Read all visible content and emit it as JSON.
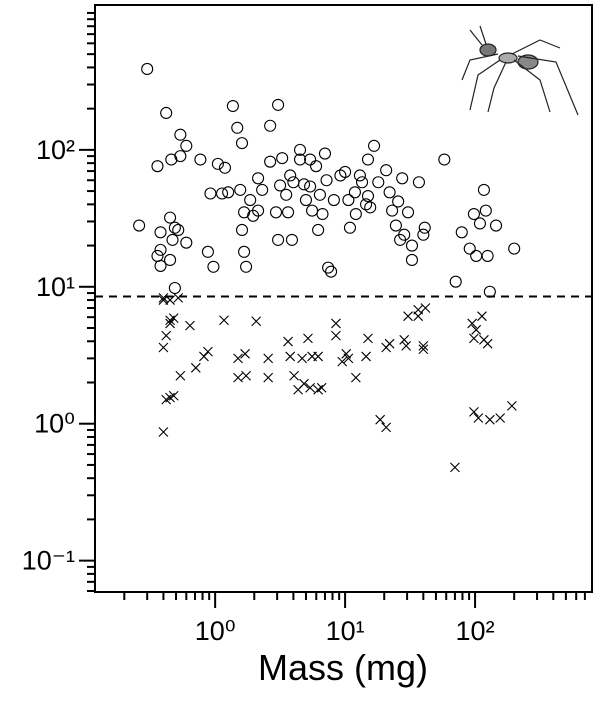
{
  "chart_data": {
    "type": "scatter",
    "x_label": "Mass (mg)",
    "xscale": "log",
    "yscale": "log",
    "xlim": [
      0.119,
      794
    ],
    "ylim": [
      0.059,
      1143
    ],
    "xticks": [
      {
        "value": 1,
        "label": "10⁰"
      },
      {
        "value": 10,
        "label": "10¹"
      },
      {
        "value": 100,
        "label": "10²"
      }
    ],
    "xminor": [
      0.2,
      0.3,
      0.4,
      0.5,
      0.6,
      0.7,
      0.8,
      0.9,
      2,
      3,
      4,
      5,
      6,
      7,
      8,
      9,
      20,
      30,
      40,
      50,
      60,
      70,
      80,
      90,
      200,
      300,
      400,
      500,
      600,
      700
    ],
    "yticks": [
      {
        "value": 0.1,
        "label": "10⁻¹"
      },
      {
        "value": 1,
        "label": "10⁰"
      },
      {
        "value": 10,
        "label": "10¹"
      },
      {
        "value": 100,
        "label": "10²"
      }
    ],
    "yminor": [
      0.06,
      0.07,
      0.08,
      0.09,
      0.2,
      0.3,
      0.4,
      0.5,
      0.6,
      0.7,
      0.8,
      0.9,
      2,
      3,
      4,
      5,
      6,
      7,
      8,
      9,
      20,
      30,
      40,
      50,
      60,
      70,
      80,
      90,
      200,
      300,
      400,
      500,
      600,
      700,
      800,
      900,
      1000
    ],
    "hline": 8.5,
    "series": [
      {
        "marker": "circle",
        "color": "#000000",
        "x": [
          0.26,
          0.3,
          0.38,
          0.36,
          0.42,
          0.46,
          0.45,
          0.47,
          0.49,
          0.38,
          0.36,
          0.38,
          0.45,
          0.49,
          0.54,
          0.54,
          0.6,
          0.6,
          0.52,
          0.77,
          0.92,
          0.88,
          0.97,
          1.05,
          1.13,
          1.19,
          1.37,
          1.48,
          1.61,
          1.26,
          1.56,
          1.67,
          1.61,
          1.67,
          1.73,
          1.86,
          1.96,
          2.14,
          2.3,
          2.14,
          2.65,
          2.65,
          2.94,
          3.05,
          3.05,
          3.16,
          3.28,
          3.52,
          3.78,
          3.64,
          3.9,
          4.0,
          4.5,
          4.5,
          4.83,
          5.0,
          5.38,
          5.38,
          5.57,
          5.98,
          6.2,
          6.4,
          6.7,
          7.0,
          7.2,
          7.4,
          7.8,
          8.2,
          9.2,
          10,
          10.6,
          10.9,
          11.9,
          12.1,
          13,
          13.5,
          14.5,
          15,
          15.6,
          15,
          16.7,
          18,
          20.7,
          22,
          23,
          25.6,
          24.6,
          26.5,
          27.5,
          28.5,
          30.5,
          32.7,
          32.7,
          37,
          40,
          41,
          58,
          71,
          79,
          91,
          98,
          102,
          109,
          117,
          121,
          125,
          130,
          145,
          200
        ],
        "values": [
          28,
          390,
          25,
          76,
          186,
          85,
          32,
          22,
          27,
          18.6,
          16.8,
          14.2,
          15.7,
          9.8,
          129,
          90,
          107,
          21,
          26,
          85,
          48,
          18,
          14,
          79,
          48,
          74,
          209,
          145,
          112,
          49,
          51,
          35,
          26,
          18,
          14,
          43,
          33,
          62,
          51,
          36,
          150,
          82,
          35,
          22,
          213,
          55,
          87,
          47,
          65,
          35,
          22,
          58,
          100,
          85,
          56,
          43,
          85,
          54,
          36,
          76,
          26,
          47,
          34,
          94,
          60,
          13.8,
          12.9,
          43,
          65,
          69,
          43,
          27,
          49,
          34,
          65,
          58,
          40,
          46,
          38,
          85,
          107,
          58,
          71,
          49,
          36,
          42,
          28,
          22,
          62,
          24,
          35,
          20,
          15.7,
          58,
          24,
          27,
          85,
          10.9,
          25,
          19,
          34,
          16.8,
          29,
          51,
          36,
          16.8,
          9.2,
          28,
          19
        ]
      },
      {
        "marker": "x",
        "color": "#000000",
        "x": [
          0.4,
          0.4,
          0.45,
          0.52,
          0.4,
          0.42,
          0.45,
          0.45,
          0.48,
          0.42,
          0.45,
          0.48,
          0.4,
          0.54,
          0.64,
          0.71,
          0.82,
          0.88,
          1.17,
          1.5,
          1.5,
          1.7,
          1.73,
          2.07,
          2.56,
          2.56,
          3.64,
          3.78,
          4.05,
          4.67,
          4.35,
          4.83,
          5.38,
          5.18,
          5.57,
          6.2,
          6.2,
          6.6,
          8.5,
          8.5,
          9.5,
          10.2,
          10.6,
          12.1,
          14.5,
          15,
          18.6,
          20.7,
          20.7,
          22,
          28.5,
          29.5,
          30.5,
          36.5,
          36.5,
          40,
          40,
          41.5,
          70,
          95,
          98,
          102,
          98,
          106,
          117,
          113,
          125,
          130,
          156,
          192
        ],
        "values": [
          8.3,
          8.0,
          8.0,
          8.3,
          3.6,
          4.4,
          5.7,
          5.4,
          5.9,
          1.5,
          1.55,
          1.6,
          0.87,
          2.24,
          5.2,
          2.56,
          3.1,
          3.36,
          5.7,
          3.0,
          2.17,
          3.24,
          2.24,
          5.6,
          3.0,
          2.17,
          3.98,
          3.1,
          2.24,
          3.0,
          1.77,
          1.96,
          1.83,
          4.2,
          3.1,
          3.1,
          1.77,
          1.83,
          5.4,
          4.4,
          2.84,
          3.24,
          3.0,
          2.17,
          3.1,
          4.2,
          1.07,
          0.94,
          3.6,
          3.84,
          4.1,
          3.7,
          6.1,
          6.8,
          6.1,
          3.7,
          3.5,
          7.0,
          0.48,
          5.4,
          4.2,
          4.85,
          1.22,
          1.1,
          4.1,
          6.1,
          3.84,
          1.07,
          1.1,
          1.35
        ]
      }
    ]
  }
}
